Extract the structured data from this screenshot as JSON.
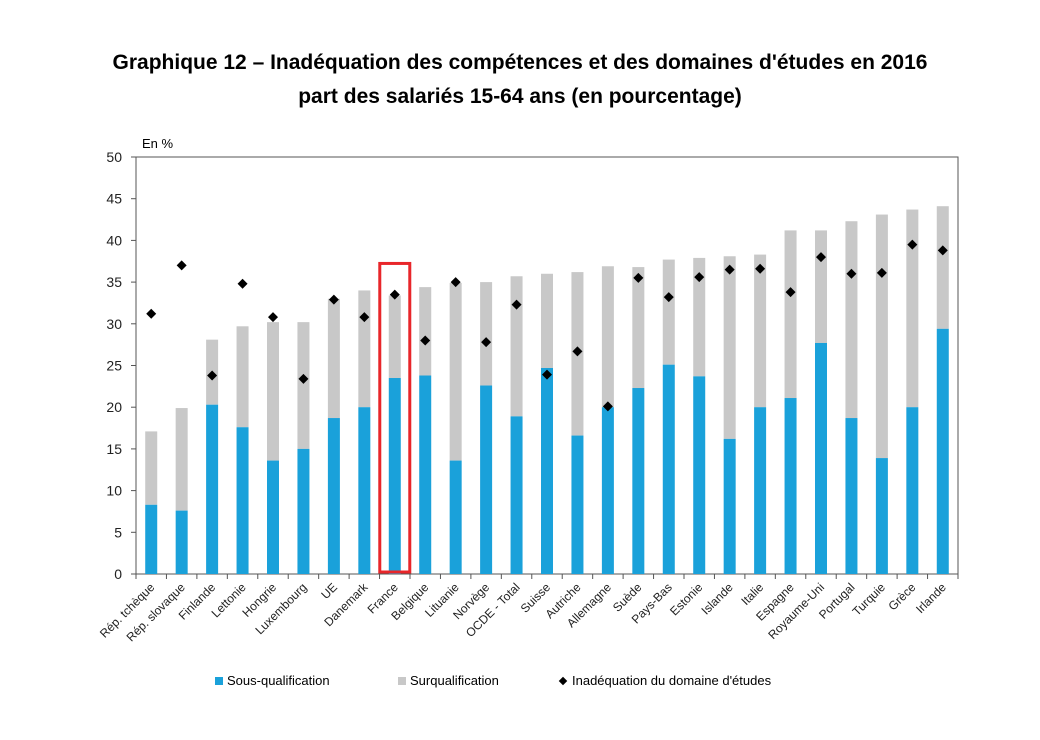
{
  "chart_data": {
    "type": "bar",
    "title": "Graphique 12 – Inadéquation des compétences et des domaines d'études en 2016",
    "subtitle": "part des salariés 15-64 ans (en pourcentage)",
    "ylabel": "En %",
    "xlabel": "",
    "ylim": [
      0,
      50
    ],
    "yticks": [
      0,
      5,
      10,
      15,
      20,
      25,
      30,
      35,
      40,
      45,
      50
    ],
    "stacked": true,
    "grid": false,
    "legend_position": "bottom",
    "highlight_category": "France",
    "categories": [
      "Rép. tchèque",
      "Rép. slovaque",
      "Finlande",
      "Lettonie",
      "Hongrie",
      "Luxembourg",
      "UE",
      "Danemark",
      "France",
      "Belgique",
      "Lituanie",
      "Norvège",
      "OCDE - Total",
      "Suisse",
      "Autriche",
      "Allemagne",
      "Suède",
      "Pays-Bas",
      "Estonie",
      "Islande",
      "Italie",
      "Espagne",
      "Royaume-Uni",
      "Portugal",
      "Turquie",
      "Grèce",
      "Irlande"
    ],
    "series": [
      {
        "name": "Sous-qualification",
        "kind": "bar",
        "color": "#1aa1da",
        "values": [
          8.3,
          7.6,
          20.3,
          17.6,
          13.6,
          15.0,
          18.7,
          20.0,
          23.5,
          23.8,
          13.6,
          22.6,
          18.9,
          24.7,
          16.6,
          20.0,
          22.3,
          25.1,
          23.7,
          16.2,
          20.0,
          21.1,
          27.7,
          18.7,
          13.9,
          20.0,
          29.4
        ]
      },
      {
        "name": "Surqualification",
        "kind": "bar",
        "color": "#c8c8c8",
        "values": [
          8.8,
          12.3,
          7.8,
          12.1,
          16.6,
          15.2,
          14.3,
          14.0,
          9.9,
          10.6,
          21.3,
          12.4,
          16.8,
          11.3,
          19.6,
          16.9,
          14.5,
          12.6,
          14.2,
          21.9,
          18.3,
          20.1,
          13.5,
          23.6,
          29.2,
          23.7,
          14.7
        ]
      },
      {
        "name": "Inadéquation du domaine d'études",
        "kind": "marker",
        "color": "#000000",
        "values": [
          31.2,
          37.0,
          23.8,
          34.8,
          30.8,
          23.4,
          32.9,
          30.8,
          33.5,
          28.0,
          35.0,
          27.8,
          32.3,
          23.9,
          26.7,
          20.1,
          35.5,
          33.2,
          35.6,
          36.5,
          36.6,
          33.8,
          38.0,
          36.0,
          36.1,
          39.5,
          38.8
        ]
      }
    ]
  },
  "legend": {
    "items": [
      {
        "label": "Sous-qualification",
        "color": "#1aa1da"
      },
      {
        "label": "Surqualification",
        "color": "#c8c8c8"
      },
      {
        "label": "Inadéquation du domaine d'études",
        "color": "#000000"
      }
    ]
  },
  "colors": {
    "highlight": "#e8262a",
    "axis": "#555555"
  }
}
